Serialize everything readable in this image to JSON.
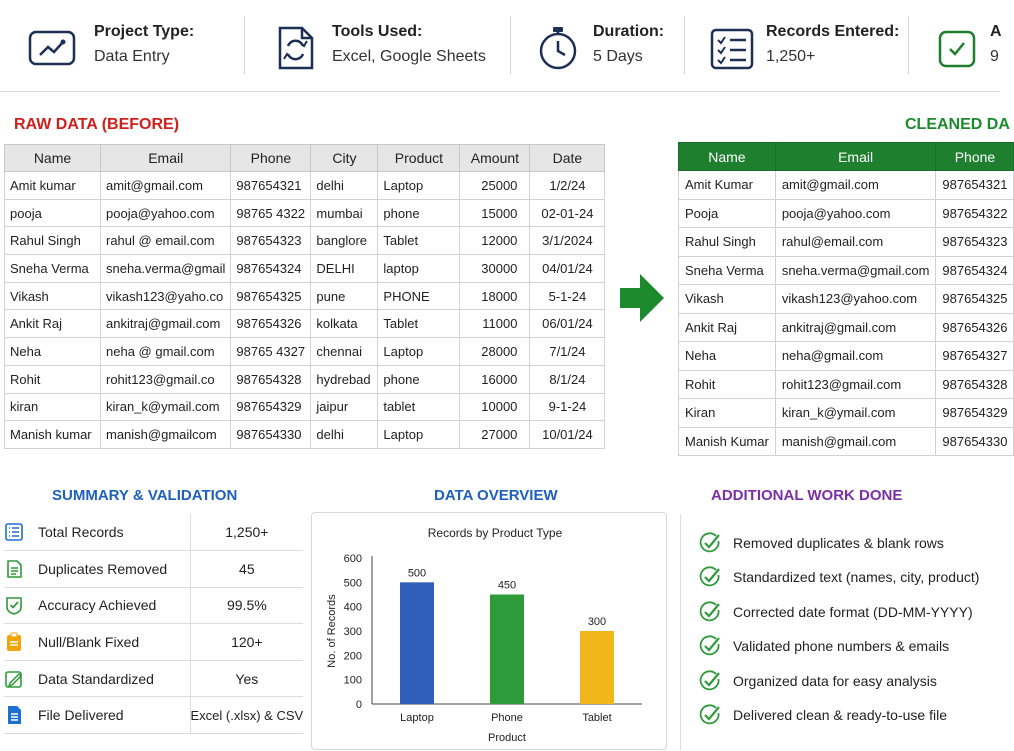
{
  "stats": [
    {
      "label": "Project Type:",
      "value": "Data Entry",
      "icon": "chart-monitor-icon"
    },
    {
      "label": "Tools Used:",
      "value": "Excel, Google Sheets",
      "icon": "sync-document-icon"
    },
    {
      "label": "Duration:",
      "value": "5 Days",
      "icon": "stopwatch-icon"
    },
    {
      "label": "Records Entered:",
      "value": "1,250+",
      "icon": "checklist-icon"
    },
    {
      "label": "A",
      "value": "9",
      "icon": "badge-icon"
    }
  ],
  "raw": {
    "title": "RAW DATA (BEFORE)",
    "headers": [
      "Name",
      "Email",
      "Phone",
      "City",
      "Product",
      "Amount",
      "Date"
    ],
    "rows": [
      [
        "Amit kumar",
        "amit@gmail.com",
        "987654321",
        "delhi",
        "Laptop",
        "25000",
        "1/2/24"
      ],
      [
        "pooja",
        "pooja@yahoo.com",
        "98765 4322",
        "mumbai",
        "phone",
        "15000",
        "02-01-24"
      ],
      [
        "Rahul Singh",
        "rahul @ email.com",
        "987654323",
        "banglore",
        "Tablet",
        "12000",
        "3/1/2024"
      ],
      [
        "Sneha Verma",
        "sneha.verma@gmail",
        "987654324",
        "DELHI",
        "laptop",
        "30000",
        "04/01/24"
      ],
      [
        "Vikash",
        "vikash123@yaho.co",
        "987654325",
        "pune",
        "PHONE",
        "18000",
        "5-1-24"
      ],
      [
        "Ankit Raj",
        "ankitraj@gmail.com",
        "987654326",
        "kolkata",
        "Tablet",
        "11000",
        "06/01/24"
      ],
      [
        "Neha",
        "neha @ gmail.com",
        "98765 4327",
        "chennai",
        "Laptop",
        "28000",
        "7/1/24"
      ],
      [
        "Rohit",
        "rohit123@gmail.co",
        "987654328",
        "hydrebad",
        "phone",
        "16000",
        "8/1/24"
      ],
      [
        "kiran",
        "kiran_k@ymail.com",
        "987654329",
        "jaipur",
        "tablet",
        "10000",
        "9-1-24"
      ],
      [
        "Manish kumar",
        "manish@gmailcom",
        "987654330",
        "delhi",
        "Laptop",
        "27000",
        "10/01/24"
      ]
    ]
  },
  "clean": {
    "title": "CLEANED DA",
    "headers": [
      "Name",
      "Email",
      "Phone"
    ],
    "rows": [
      [
        "Amit Kumar",
        "amit@gmail.com",
        "987654321"
      ],
      [
        "Pooja",
        "pooja@yahoo.com",
        "987654322"
      ],
      [
        "Rahul Singh",
        "rahul@email.com",
        "987654323"
      ],
      [
        "Sneha Verma",
        "sneha.verma@gmail.com",
        "987654324"
      ],
      [
        "Vikash",
        "vikash123@yahoo.com",
        "987654325"
      ],
      [
        "Ankit Raj",
        "ankitraj@gmail.com",
        "987654326"
      ],
      [
        "Neha",
        "neha@gmail.com",
        "987654327"
      ],
      [
        "Rohit",
        "rohit123@gmail.com",
        "987654328"
      ],
      [
        "Kiran",
        "kiran_k@ymail.com",
        "987654329"
      ],
      [
        "Manish Kumar",
        "manish@gmail.com",
        "987654330"
      ]
    ]
  },
  "arrow_icon": "right-arrow-icon",
  "summary": {
    "title": "SUMMARY & VALIDATION",
    "rows": [
      {
        "label": "Total Records",
        "value": "1,250+",
        "icon": "list-icon",
        "color": "#1f6fd1"
      },
      {
        "label": "Duplicates Removed",
        "value": "45",
        "icon": "document-icon",
        "color": "#2e9b3a"
      },
      {
        "label": "Accuracy Achieved",
        "value": "99.5%",
        "icon": "shield-check-icon",
        "color": "#2e9b3a"
      },
      {
        "label": "Null/Blank Fixed",
        "value": "120+",
        "icon": "clipboard-icon",
        "color": "#f2a500"
      },
      {
        "label": "Data Standardized",
        "value": "Yes",
        "icon": "edit-icon",
        "color": "#2e9b3a"
      },
      {
        "label": "File Delivered",
        "value": "Excel (.xlsx) & CSV",
        "icon": "file-icon",
        "color": "#1f6fd1"
      }
    ]
  },
  "overview_title": "DATA OVERVIEW",
  "chart_data": {
    "type": "bar",
    "title": "Records by Product Type",
    "categories": [
      "Laptop",
      "Phone",
      "Tablet"
    ],
    "values": [
      500,
      450,
      300
    ],
    "colors": [
      "#2f5fb8",
      "#2e9b3a",
      "#f2b51c"
    ],
    "xlabel": "Product",
    "ylabel": "No. of Records",
    "ylim": [
      0,
      600
    ],
    "yticks": [
      0,
      100,
      200,
      300,
      400,
      500,
      600
    ],
    "grid": false
  },
  "work": {
    "title": "ADDITIONAL WORK DONE",
    "icon": "check-icon",
    "items": [
      "Removed duplicates & blank rows",
      "Standardized text (names, city, product)",
      "Corrected date format (DD-MM-YYYY)",
      "Validated phone numbers & emails",
      "Organized data for easy analysis",
      "Delivered clean & ready-to-use file"
    ]
  },
  "colors": {
    "raw_title": "#d0201b",
    "clean_title": "#1e8a2e",
    "summary_title": "#1f5fbf",
    "overview_title": "#1f5fbf",
    "work_title": "#7b2fa8",
    "icon_navy": "#1e2f55",
    "clean_header": "#1e7f2e",
    "arrow": "#1e8a2e"
  }
}
